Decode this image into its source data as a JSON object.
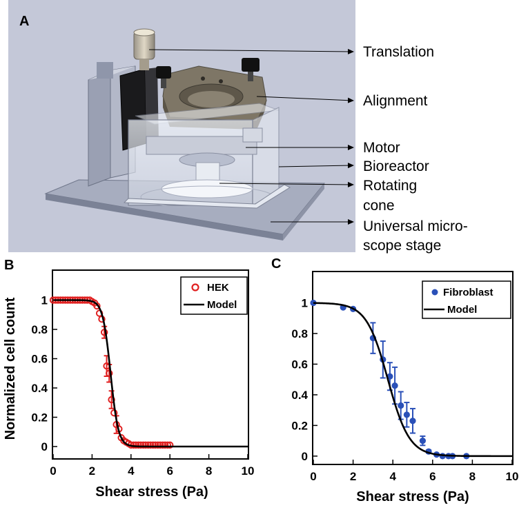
{
  "panels": {
    "a": {
      "label": "A",
      "callouts": [
        {
          "text": "Translation"
        },
        {
          "text": "Alignment"
        },
        {
          "text": "Motor"
        },
        {
          "text": "Bioreactor"
        },
        {
          "text": "Rotating"
        },
        {
          "text": "cone"
        },
        {
          "text": "Universal micro-"
        },
        {
          "text": "scope stage"
        }
      ]
    },
    "b": {
      "label": "B"
    },
    "c": {
      "label": "C"
    }
  },
  "colors": {
    "hek": "#e02020",
    "fibroblast": "#2a50b8",
    "model": "#000000",
    "render_bg": "#c4c8d8"
  },
  "chart_data": [
    {
      "type": "line",
      "xlabel": "Shear stress (Pa)",
      "ylabel": "Normalized cell count",
      "xlim": [
        0,
        10
      ],
      "ylim": [
        -0.08,
        1.2
      ],
      "xticks": [
        "0",
        "2",
        "4",
        "6",
        "8",
        "10"
      ],
      "yticks": [
        "0",
        "0.2",
        "0.4",
        "0.6",
        "0.8",
        "1"
      ],
      "legend": "top-right",
      "grid": false,
      "model": {
        "midpoint": 2.95,
        "slope": 5.0
      },
      "series": [
        {
          "name": "HEK",
          "marker": "open-circle",
          "x": [
            0,
            0.13,
            0.25,
            0.38,
            0.5,
            0.63,
            0.75,
            0.88,
            1.0,
            1.13,
            1.25,
            1.38,
            1.5,
            1.63,
            1.75,
            1.88,
            2.0,
            2.13,
            2.25,
            2.38,
            2.5,
            2.63,
            2.75,
            2.88,
            3.0,
            3.13,
            3.25,
            3.38,
            3.5,
            3.63,
            3.75,
            3.88,
            4.0,
            4.13,
            4.25,
            4.38,
            4.5,
            4.63,
            4.75,
            4.88,
            5.0,
            5.13,
            5.25,
            5.38,
            5.5,
            5.63,
            5.75,
            5.88,
            6.0
          ],
          "y": [
            1.0,
            1.0,
            1.0,
            1.0,
            1.0,
            1.0,
            1.0,
            1.0,
            1.0,
            1.0,
            1.0,
            1.0,
            1.0,
            1.0,
            1.0,
            1.0,
            0.99,
            0.98,
            0.96,
            0.91,
            0.87,
            0.78,
            0.55,
            0.5,
            0.32,
            0.23,
            0.15,
            0.12,
            0.06,
            0.04,
            0.03,
            0.02,
            0.01,
            0.01,
            0.01,
            0.01,
            0.01,
            0.01,
            0.01,
            0.01,
            0.01,
            0.01,
            0.01,
            0.01,
            0.01,
            0.01,
            0.01,
            0.01,
            0.01
          ],
          "errors": [
            {
              "x": 2.63,
              "y": 0.78,
              "err": 0.04
            },
            {
              "x": 2.75,
              "y": 0.55,
              "err": 0.07
            },
            {
              "x": 2.88,
              "y": 0.5,
              "err": 0.06
            },
            {
              "x": 3.0,
              "y": 0.32,
              "err": 0.06
            },
            {
              "x": 3.25,
              "y": 0.15,
              "err": 0.06
            }
          ]
        },
        {
          "name": "Model",
          "type": "line"
        }
      ]
    },
    {
      "type": "line",
      "xlabel": "Shear stress (Pa)",
      "ylabel": "",
      "xlim": [
        0,
        10
      ],
      "ylim": [
        -0.05,
        1.2
      ],
      "xticks": [
        "0",
        "2",
        "4",
        "6",
        "8",
        "10"
      ],
      "yticks": [
        "0",
        "0.2",
        "0.4",
        "0.6",
        "0.8",
        "1"
      ],
      "legend": "top-right",
      "grid": false,
      "model": {
        "midpoint": 3.75,
        "slope": 1.85
      },
      "series": [
        {
          "name": "Fibroblast",
          "marker": "filled-circle",
          "x": [
            0,
            1.5,
            2.0,
            3.0,
            3.5,
            3.85,
            4.1,
            4.4,
            4.7,
            5.0,
            5.5,
            5.8,
            6.2,
            6.5,
            6.8,
            7.0,
            7.7
          ],
          "y": [
            1.0,
            0.97,
            0.96,
            0.77,
            0.63,
            0.52,
            0.46,
            0.33,
            0.27,
            0.23,
            0.1,
            0.03,
            0.01,
            0.0,
            0.0,
            0.0,
            0.0
          ],
          "err": [
            0,
            0,
            0,
            0.1,
            0.12,
            0.09,
            0.12,
            0.09,
            0.08,
            0.08,
            0.03,
            0.01,
            0,
            0,
            0,
            0,
            0
          ]
        },
        {
          "name": "Model",
          "type": "line"
        }
      ]
    }
  ]
}
